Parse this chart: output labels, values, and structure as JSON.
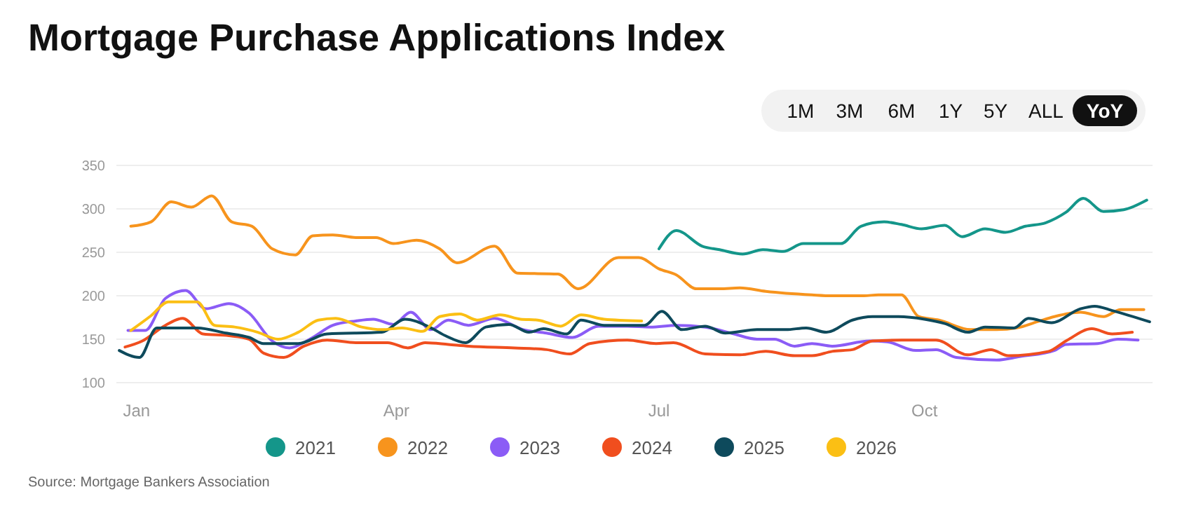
{
  "chart_data": {
    "type": "line",
    "title": "Mortgage Purchase Applications Index",
    "annotations": [
      "1M",
      "3M",
      "6M",
      "1Y",
      "5Y",
      "ALL",
      "YoY",
      "Source: Mortgage Bankers Association"
    ],
    "xlim": [
      "--01-01",
      "--12-26"
    ],
    "xticks": [
      {
        "value": "--01-08",
        "label": "Jan"
      },
      {
        "value": "--04-08",
        "label": "Apr"
      },
      {
        "value": "--07-08",
        "label": "Jul"
      },
      {
        "value": "--10-08",
        "label": "Oct"
      }
    ],
    "ylim": [
      100,
      350
    ],
    "yticks": [
      100,
      150,
      200,
      250,
      300,
      350
    ],
    "grid": "y",
    "legend": "bottom",
    "line_style": "solid",
    "series": [
      {
        "name": "2021",
        "color": "#14968a",
        "x": [
          "--07-08",
          "--07-14",
          "--07-23",
          "--07-29",
          "--08-06",
          "--08-13",
          "--08-20",
          "--08-27",
          "--09-09",
          "--09-16",
          "--09-24",
          "--09-30",
          "--10-07",
          "--10-15",
          "--10-21",
          "--10-29",
          "--11-05",
          "--11-12",
          "--11-19",
          "--11-26",
          "--12-02",
          "--12-09",
          "--12-16",
          "--12-24"
        ],
        "values": [
          254,
          275,
          257,
          253,
          248,
          253,
          251,
          260,
          260,
          280,
          285,
          282,
          277,
          281,
          268,
          277,
          273,
          280,
          284,
          296,
          312,
          297,
          299,
          310
        ]
      },
      {
        "name": "2022",
        "color": "#f7941d",
        "x": [
          "--01-06",
          "--01-13",
          "--01-20",
          "--01-27",
          "--02-03",
          "--02-10",
          "--02-17",
          "--02-24",
          "--03-04",
          "--03-10",
          "--03-17",
          "--03-25",
          "--04-01",
          "--04-07",
          "--04-15",
          "--04-23",
          "--04-29",
          "--05-12",
          "--05-20",
          "--06-03",
          "--06-10",
          "--06-24",
          "--07-01",
          "--07-08",
          "--07-14",
          "--07-21",
          "--07-29",
          "--08-05",
          "--08-14",
          "--08-30",
          "--09-06",
          "--09-17",
          "--09-22",
          "--09-30",
          "--10-06",
          "--10-13",
          "--10-24",
          "--11-02",
          "--11-09",
          "--11-16",
          "--11-22",
          "--12-01",
          "--12-09",
          "--12-15",
          "--12-23"
        ],
        "values": [
          280,
          285,
          308,
          302,
          315,
          285,
          280,
          254,
          247,
          269,
          270,
          267,
          267,
          260,
          264,
          254,
          238,
          257,
          226,
          225,
          208,
          244,
          244,
          231,
          224,
          208,
          208,
          209,
          205,
          201,
          200,
          200,
          201,
          201,
          176,
          172,
          161,
          161,
          163,
          170,
          176,
          181,
          176,
          184,
          184
        ]
      },
      {
        "name": "2023",
        "color": "#8b5cf6",
        "x": [
          "--01-05",
          "--01-11",
          "--01-18",
          "--01-25",
          "--02-01",
          "--02-09",
          "--02-16",
          "--02-24",
          "--03-02",
          "--03-09",
          "--03-17",
          "--03-25",
          "--03-31",
          "--04-07",
          "--04-13",
          "--04-20",
          "--04-26",
          "--05-03",
          "--05-12",
          "--05-22",
          "--05-30",
          "--06-08",
          "--06-17",
          "--06-27",
          "--07-05",
          "--07-14",
          "--07-24",
          "--08-03",
          "--08-11",
          "--08-17",
          "--08-24",
          "--08-30",
          "--09-06",
          "--09-19",
          "--09-25",
          "--10-05",
          "--10-12",
          "--10-19",
          "--11-02",
          "--11-10",
          "--11-22",
          "--11-26",
          "--12-07",
          "--12-14",
          "--12-21"
        ],
        "values": [
          160,
          160,
          197,
          206,
          185,
          191,
          180,
          148,
          140,
          150,
          166,
          171,
          173,
          167,
          181,
          161,
          172,
          166,
          174,
          161,
          157,
          152,
          165,
          165,
          164,
          166,
          164,
          156,
          150,
          150,
          142,
          145,
          142,
          148,
          147,
          137,
          138,
          129,
          126,
          130,
          137,
          144,
          145,
          150,
          149
        ]
      },
      {
        "name": "2024",
        "color": "#f04e1e",
        "x": [
          "--01-04",
          "--01-10",
          "--01-18",
          "--01-24",
          "--01-31",
          "--02-09",
          "--02-16",
          "--02-21",
          "--02-28",
          "--03-07",
          "--03-15",
          "--03-25",
          "--04-05",
          "--04-12",
          "--04-18",
          "--04-26",
          "--05-03",
          "--05-19",
          "--05-30",
          "--06-07",
          "--06-14",
          "--06-27",
          "--07-07",
          "--07-13",
          "--07-24",
          "--08-05",
          "--08-14",
          "--08-24",
          "--08-30",
          "--09-06",
          "--09-13",
          "--09-20",
          "--09-30",
          "--10-12",
          "--10-23",
          "--10-31",
          "--11-06",
          "--11-20",
          "--11-26",
          "--12-05",
          "--12-12",
          "--12-19"
        ],
        "values": [
          141,
          148,
          166,
          174,
          156,
          154,
          150,
          134,
          129,
          142,
          149,
          146,
          146,
          140,
          146,
          144,
          142,
          140,
          138,
          133,
          145,
          149,
          145,
          146,
          133,
          132,
          136,
          131,
          131,
          136,
          138,
          148,
          149,
          149,
          132,
          138,
          131,
          136,
          148,
          162,
          156,
          158
        ]
      },
      {
        "name": "2025",
        "color": "#0e4a5c",
        "x": [
          "--01-02",
          "--01-09",
          "--01-15",
          "--01-29",
          "--02-08",
          "--02-16",
          "--02-21",
          "--03-05",
          "--03-15",
          "--04-03",
          "--04-11",
          "--04-20",
          "--04-25",
          "--05-02",
          "--05-09",
          "--05-17",
          "--05-24",
          "--05-29",
          "--06-06",
          "--06-11",
          "--06-19",
          "--07-03",
          "--07-09",
          "--07-16",
          "--07-24",
          "--07-31",
          "--08-11",
          "--08-21",
          "--08-28",
          "--09-04",
          "--09-13",
          "--09-20",
          "--09-29",
          "--10-08",
          "--10-15",
          "--10-23",
          "--10-29",
          "--11-08",
          "--11-13",
          "--11-21",
          "--12-01",
          "--12-06",
          "--12-12",
          "--12-25"
        ],
        "values": [
          137,
          129,
          163,
          163,
          157,
          152,
          145,
          145,
          156,
          158,
          173,
          163,
          154,
          146,
          164,
          167,
          158,
          162,
          156,
          172,
          166,
          166,
          182,
          161,
          165,
          157,
          161,
          161,
          163,
          158,
          172,
          176,
          176,
          173,
          168,
          158,
          164,
          163,
          174,
          169,
          185,
          188,
          183,
          170
        ]
      },
      {
        "name": "2026",
        "color": "#fbbf14",
        "x": [
          "--01-06",
          "--01-13",
          "--01-19",
          "--01-29",
          "--02-04",
          "--02-11",
          "--02-19",
          "--02-26",
          "--03-05",
          "--03-12",
          "--03-18",
          "--03-27",
          "--04-03",
          "--04-10",
          "--04-17",
          "--04-23",
          "--04-30",
          "--05-06",
          "--05-14",
          "--05-21",
          "--05-27",
          "--06-04",
          "--06-11",
          "--06-19",
          "--07-02"
        ],
        "values": [
          160,
          177,
          193,
          193,
          166,
          164,
          158,
          150,
          158,
          172,
          174,
          164,
          161,
          163,
          159,
          176,
          179,
          172,
          178,
          173,
          172,
          165,
          178,
          173,
          171
        ]
      }
    ]
  }
}
